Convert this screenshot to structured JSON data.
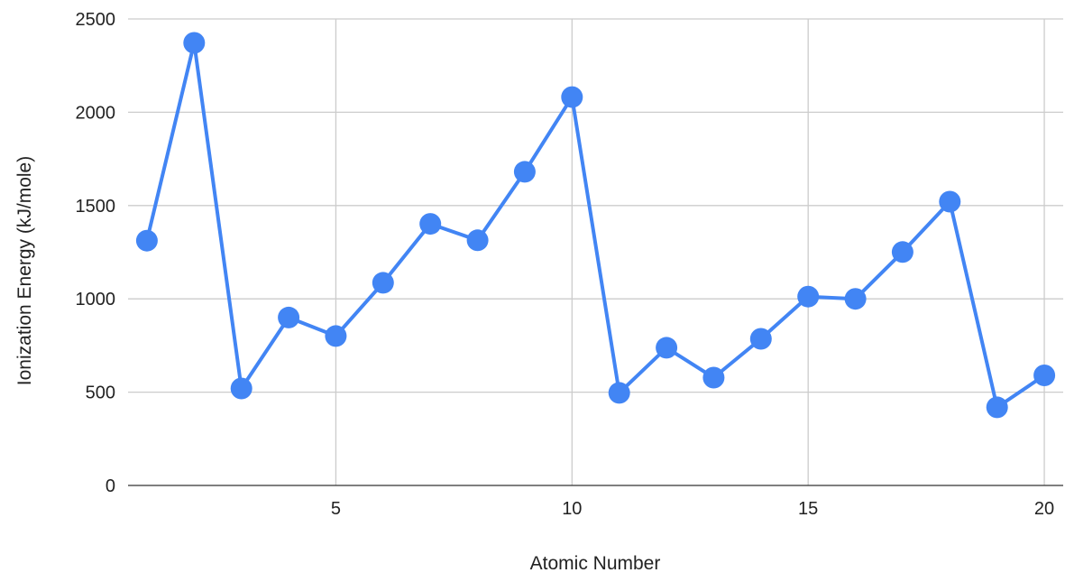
{
  "chart_data": {
    "type": "line",
    "title": "",
    "xlabel": "Atomic Number",
    "ylabel": "Ionization Energy (kJ/mole)",
    "xlim": [
      0.6,
      20.4
    ],
    "ylim": [
      0,
      2500
    ],
    "x_ticks": [
      5,
      10,
      15,
      20
    ],
    "y_ticks": [
      0,
      500,
      1000,
      1500,
      2000,
      2500
    ],
    "grid": true,
    "legend": "none",
    "series": [
      {
        "x": [
          1,
          2,
          3,
          4,
          5,
          6,
          7,
          8,
          9,
          10,
          11,
          12,
          13,
          14,
          15,
          16,
          17,
          18,
          19,
          20
        ],
        "values": [
          1312,
          2372,
          520,
          900,
          801,
          1086,
          1402,
          1314,
          1681,
          2081,
          496,
          738,
          578,
          786,
          1012,
          1000,
          1251,
          1521,
          419,
          590
        ],
        "color": "#4285f4"
      }
    ]
  }
}
